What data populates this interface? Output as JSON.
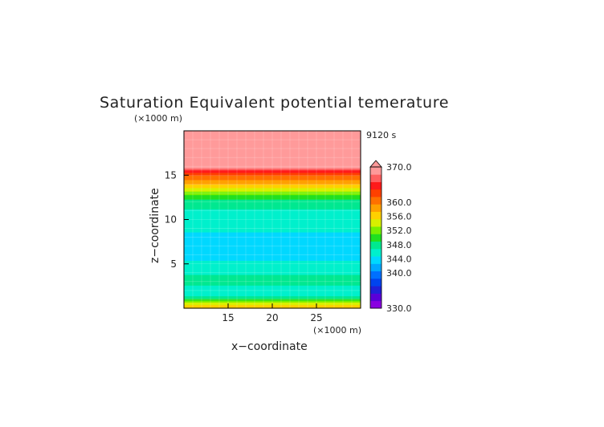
{
  "chart_data": {
    "type": "heatmap",
    "title": "Saturation Equivalent potential temerature",
    "time_label": "9120 s",
    "xlabel": "x−coordinate",
    "ylabel": "z−coordinate",
    "x_unit": "(×1000 m)",
    "y_unit": "(×1000 m)",
    "xlim": [
      10,
      30
    ],
    "ylim": [
      0,
      20
    ],
    "x_ticks": [
      15,
      20,
      25
    ],
    "y_ticks": [
      5,
      10,
      15
    ],
    "colorbar": {
      "min": 330,
      "max": 370,
      "ticks": [
        "370.0",
        "360.0",
        "356.0",
        "352.0",
        "348.0",
        "344.0",
        "340.0",
        "330.0"
      ],
      "colors": [
        "#8a00e0",
        "#5a00d8",
        "#2020d8",
        "#0044ee",
        "#0070ff",
        "#00a8ff",
        "#00d8ff",
        "#00f0cc",
        "#00e890",
        "#20e020",
        "#78f000",
        "#d8f000",
        "#ffd000",
        "#ffa000",
        "#ff7000",
        "#ff4000",
        "#ff1a1a",
        "#ff6060",
        "#ff9a9a"
      ]
    },
    "profile": [
      {
        "z": 0.0,
        "value": 359
      },
      {
        "z": 0.5,
        "value": 356
      },
      {
        "z": 1.0,
        "value": 351
      },
      {
        "z": 1.5,
        "value": 347
      },
      {
        "z": 2.0,
        "value": 346
      },
      {
        "z": 2.5,
        "value": 347
      },
      {
        "z": 3.0,
        "value": 350
      },
      {
        "z": 3.5,
        "value": 349
      },
      {
        "z": 4.0,
        "value": 347
      },
      {
        "z": 5.0,
        "value": 346
      },
      {
        "z": 6.0,
        "value": 345
      },
      {
        "z": 7.0,
        "value": 345
      },
      {
        "z": 8.0,
        "value": 345
      },
      {
        "z": 9.0,
        "value": 346
      },
      {
        "z": 10.0,
        "value": 347
      },
      {
        "z": 11.0,
        "value": 347.5
      },
      {
        "z": 12.0,
        "value": 349
      },
      {
        "z": 12.5,
        "value": 351
      },
      {
        "z": 13.0,
        "value": 353
      },
      {
        "z": 13.5,
        "value": 356
      },
      {
        "z": 14.0,
        "value": 359
      },
      {
        "z": 14.5,
        "value": 361
      },
      {
        "z": 15.0,
        "value": 363
      },
      {
        "z": 15.5,
        "value": 367
      },
      {
        "z": 16.0,
        "value": 372
      },
      {
        "z": 20.0,
        "value": 372
      }
    ]
  }
}
